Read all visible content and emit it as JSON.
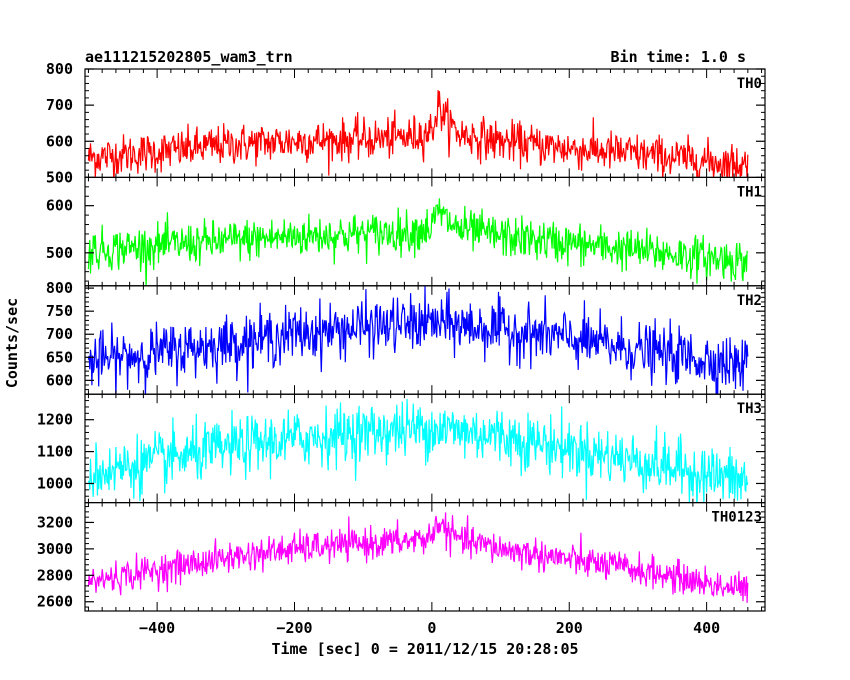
{
  "chart_data": {
    "type": "line",
    "title": "ae111215202805_wam3_trn",
    "subtitle": "Bin time: 1.0 s",
    "xlabel": "Time [sec] 0 = 2011/12/15 20:28:05",
    "ylabel": "Counts/sec",
    "xlim": [
      -505,
      485
    ],
    "xticks": [
      "−400",
      "−200",
      "0",
      "200",
      "400"
    ],
    "xtick_values": [
      -400,
      -200,
      0,
      200,
      400
    ],
    "grid": false,
    "panels": [
      {
        "name": "TH0",
        "color": "#ff0000",
        "ylim": [
          500,
          800
        ],
        "yticks": [
          500,
          600,
          700,
          800
        ],
        "profile": [
          [
            -500,
            555
          ],
          [
            -400,
            570
          ],
          [
            -300,
            590
          ],
          [
            -200,
            600
          ],
          [
            -100,
            605
          ],
          [
            -30,
            612
          ],
          [
            0,
            630
          ],
          [
            10,
            700
          ],
          [
            20,
            660
          ],
          [
            40,
            620
          ],
          [
            100,
            600
          ],
          [
            200,
            580
          ],
          [
            300,
            565
          ],
          [
            400,
            545
          ],
          [
            460,
            535
          ]
        ],
        "noise": 28
      },
      {
        "name": "TH1",
        "color": "#00ff00",
        "ylim": [
          430,
          660
        ],
        "yticks": [
          500,
          600
        ],
        "profile": [
          [
            -500,
            505
          ],
          [
            -400,
            515
          ],
          [
            -300,
            525
          ],
          [
            -200,
            535
          ],
          [
            -100,
            540
          ],
          [
            -30,
            545
          ],
          [
            0,
            555
          ],
          [
            10,
            590
          ],
          [
            20,
            570
          ],
          [
            40,
            550
          ],
          [
            100,
            535
          ],
          [
            200,
            520
          ],
          [
            300,
            505
          ],
          [
            400,
            490
          ],
          [
            460,
            482
          ]
        ],
        "noise": 22
      },
      {
        "name": "TH2",
        "color": "#0000ff",
        "ylim": [
          570,
          805
        ],
        "yticks": [
          600,
          650,
          700,
          750,
          800
        ],
        "profile": [
          [
            -500,
            640
          ],
          [
            -400,
            660
          ],
          [
            -300,
            680
          ],
          [
            -200,
            700
          ],
          [
            -100,
            715
          ],
          [
            0,
            725
          ],
          [
            100,
            710
          ],
          [
            200,
            690
          ],
          [
            300,
            665
          ],
          [
            400,
            645
          ],
          [
            460,
            630
          ]
        ],
        "noise": 30
      },
      {
        "name": "TH3",
        "color": "#00ffff",
        "ylim": [
          940,
          1280
        ],
        "yticks": [
          1000,
          1100,
          1200
        ],
        "profile": [
          [
            -500,
            1030
          ],
          [
            -400,
            1070
          ],
          [
            -300,
            1110
          ],
          [
            -200,
            1140
          ],
          [
            -100,
            1160
          ],
          [
            0,
            1175
          ],
          [
            100,
            1150
          ],
          [
            200,
            1110
          ],
          [
            300,
            1070
          ],
          [
            400,
            1030
          ],
          [
            460,
            1005
          ]
        ],
        "noise": 45
      },
      {
        "name": "TH0123",
        "color": "#ff00ff",
        "ylim": [
          2530,
          3350
        ],
        "yticks": [
          2600,
          2800,
          3000,
          3200
        ],
        "profile": [
          [
            -500,
            2750
          ],
          [
            -400,
            2840
          ],
          [
            -300,
            2930
          ],
          [
            -200,
            3000
          ],
          [
            -100,
            3040
          ],
          [
            -30,
            3060
          ],
          [
            0,
            3090
          ],
          [
            10,
            3220
          ],
          [
            20,
            3140
          ],
          [
            40,
            3070
          ],
          [
            100,
            3000
          ],
          [
            200,
            2920
          ],
          [
            300,
            2840
          ],
          [
            400,
            2740
          ],
          [
            460,
            2690
          ]
        ],
        "noise": 60
      }
    ]
  }
}
